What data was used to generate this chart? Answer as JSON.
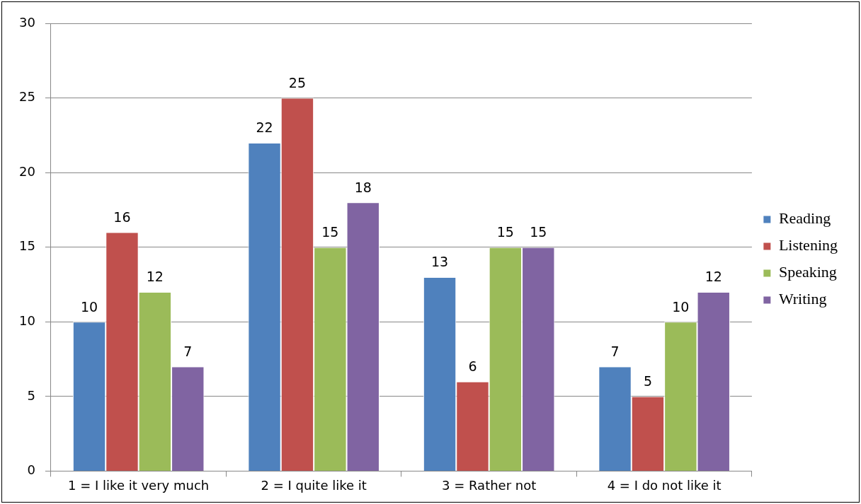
{
  "chart_data": {
    "type": "bar",
    "categories": [
      "1 = I like it very much",
      "2 = I quite like it",
      "3 = Rather not",
      "4 = I do not like it"
    ],
    "series": [
      {
        "name": "Reading",
        "color": "#4f81bd",
        "values": [
          10,
          22,
          13,
          7
        ]
      },
      {
        "name": "Listening",
        "color": "#c0504d",
        "values": [
          16,
          25,
          6,
          5
        ]
      },
      {
        "name": "Speaking",
        "color": "#9bbb59",
        "values": [
          12,
          15,
          15,
          10
        ]
      },
      {
        "name": "Writing",
        "color": "#8064a2",
        "values": [
          7,
          18,
          15,
          12
        ]
      }
    ],
    "ylim": [
      0,
      30
    ],
    "yticks": [
      0,
      5,
      10,
      15,
      20,
      25,
      30
    ],
    "grid": "y",
    "legend": "right",
    "data_labels": true
  }
}
